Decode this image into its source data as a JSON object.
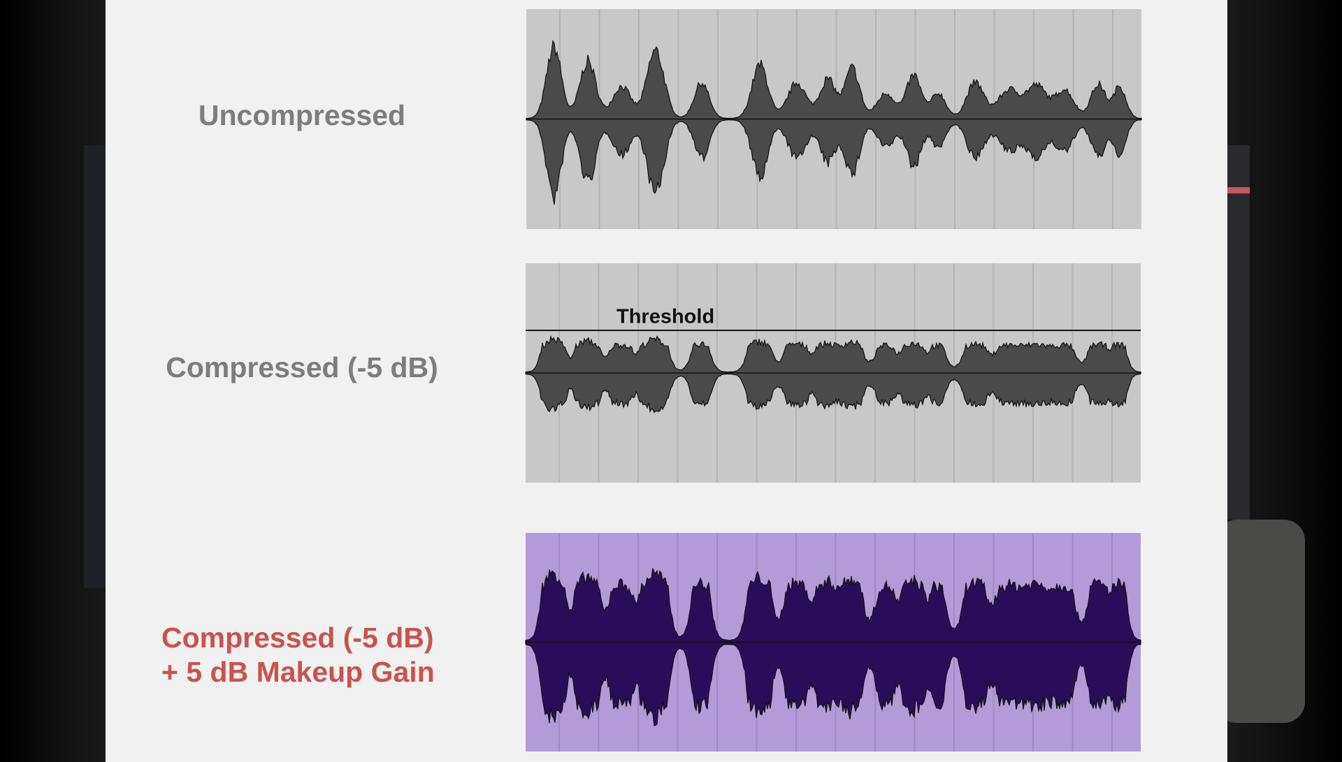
{
  "rows": [
    {
      "label": "Uncompressed"
    },
    {
      "label": "Compressed (-5 dB)",
      "annotation": "Threshold"
    },
    {
      "label_lines": [
        "Compressed (-5 dB)",
        "+ 5 dB Makeup Gain"
      ]
    }
  ]
}
